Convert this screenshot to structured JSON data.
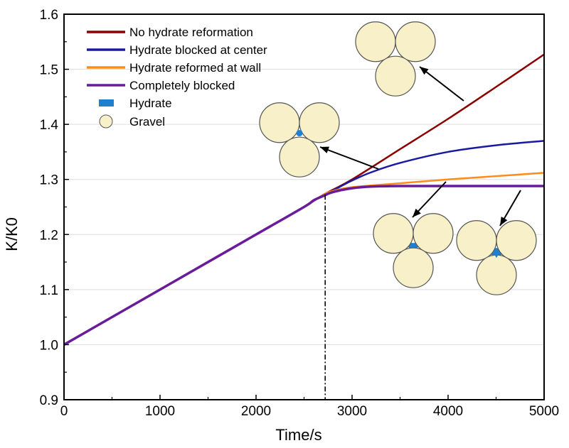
{
  "chart_data": {
    "type": "line",
    "title": "",
    "xlabel": "Time/s",
    "ylabel": "K/K0",
    "xlim": [
      0,
      5000
    ],
    "ylim": [
      0.9,
      1.6
    ],
    "xticks": [
      0,
      1000,
      2000,
      3000,
      4000,
      5000
    ],
    "yticks": [
      0.9,
      1.0,
      1.1,
      1.2,
      1.3,
      1.4,
      1.5,
      1.6
    ],
    "xtick_labels": [
      "0",
      "1000",
      "2000",
      "3000",
      "4000",
      "5000"
    ],
    "ytick_labels": [
      "0.9",
      "1.0",
      "1.1",
      "1.2",
      "1.3",
      "1.4",
      "1.5",
      "1.6"
    ],
    "grid": "horizontal",
    "legend_position": "top-left",
    "series": [
      {
        "name": "No hydrate reformation",
        "color": "#8B0000",
        "x": [
          0,
          500,
          1000,
          1500,
          2000,
          2500,
          2700,
          3000,
          3500,
          4000,
          4500,
          5000
        ],
        "y": [
          1.0,
          1.05,
          1.1,
          1.15,
          1.2,
          1.25,
          1.272,
          1.3,
          1.355,
          1.41,
          1.468,
          1.527
        ]
      },
      {
        "name": "Hydrate blocked at center",
        "color": "#1a1aa0",
        "x": [
          0,
          500,
          1000,
          1500,
          2000,
          2500,
          2700,
          2800,
          3000,
          3200,
          3500,
          4000,
          4500,
          5000
        ],
        "y": [
          1.0,
          1.05,
          1.1,
          1.15,
          1.2,
          1.25,
          1.272,
          1.28,
          1.298,
          1.313,
          1.33,
          1.35,
          1.362,
          1.37
        ]
      },
      {
        "name": "Hydrate reformed at wall",
        "color": "#FF8C1A",
        "x": [
          0,
          500,
          1000,
          1500,
          2000,
          2500,
          2700,
          2800,
          3000,
          3500,
          4000,
          4500,
          5000
        ],
        "y": [
          1.0,
          1.05,
          1.1,
          1.15,
          1.2,
          1.25,
          1.272,
          1.279,
          1.286,
          1.293,
          1.3,
          1.306,
          1.312
        ]
      },
      {
        "name": "Completely blocked",
        "color": "#6A1B9A",
        "x": [
          0,
          500,
          1000,
          1500,
          2000,
          2500,
          2600,
          2700,
          2800,
          3000,
          3200,
          3500,
          4000,
          4500,
          5000
        ],
        "y": [
          1.0,
          1.05,
          1.1,
          1.15,
          1.2,
          1.25,
          1.262,
          1.27,
          1.277,
          1.284,
          1.287,
          1.288,
          1.288,
          1.288,
          1.288
        ]
      }
    ],
    "legend_symbols": [
      {
        "name": "Hydrate",
        "color": "#1f7fd0"
      },
      {
        "name": "Gravel",
        "color": "#f8f0c8"
      }
    ],
    "reference_line": {
      "x": 2720,
      "style": "dash-dot"
    },
    "colors": {
      "gravel_fill": "#f8f0c8",
      "gravel_stroke": "#555555",
      "hydrate": "#1f7fd0",
      "grid": "#dddddd"
    }
  }
}
